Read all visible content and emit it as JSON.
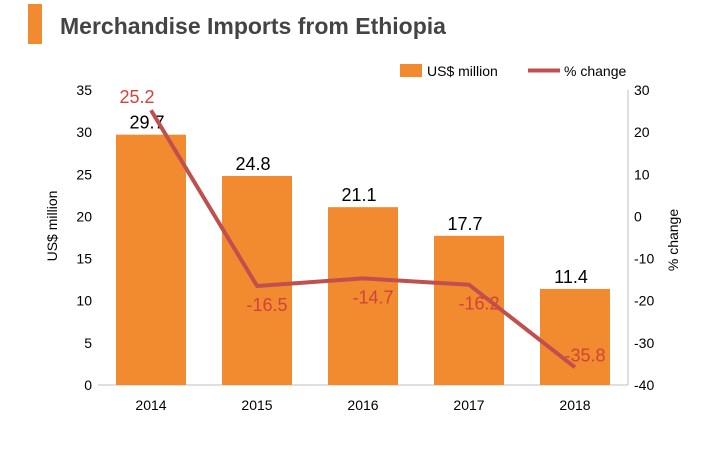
{
  "colors": {
    "accent": "#f28a30",
    "bar": "#f28a30",
    "line": "#c0504d",
    "pct_label": "#d0433a",
    "text": "#000000",
    "title": "#444444",
    "axis": "#bfbfbf"
  },
  "chart_data": {
    "type": "bar",
    "title": "Merchandise Imports from Ethiopia",
    "categories": [
      "2014",
      "2015",
      "2016",
      "2017",
      "2018"
    ],
    "series": [
      {
        "name": "US$ million",
        "type": "bar",
        "axis": "left",
        "values": [
          29.7,
          24.8,
          21.1,
          17.7,
          11.4
        ],
        "labels": [
          "29.7",
          "24.8",
          "21.1",
          "17.7",
          "11.4"
        ]
      },
      {
        "name": "% change",
        "type": "line",
        "axis": "right",
        "values": [
          25.2,
          -16.5,
          -14.7,
          -16.2,
          -35.8
        ],
        "labels": [
          "25.2",
          "-16.5",
          "-14.7",
          "-16.2",
          "-35.8"
        ]
      }
    ],
    "ylabel": "US$ million",
    "ylabel_right": "% change",
    "ylim": [
      0,
      35
    ],
    "ylim_right": [
      -40,
      30
    ],
    "yticks": [
      "0",
      "5",
      "10",
      "15",
      "20",
      "25",
      "30",
      "35"
    ],
    "yticks_right": [
      "-40",
      "-30",
      "-20",
      "-10",
      "0",
      "10",
      "20",
      "30"
    ],
    "legend_position": "top-right",
    "grid": false
  }
}
